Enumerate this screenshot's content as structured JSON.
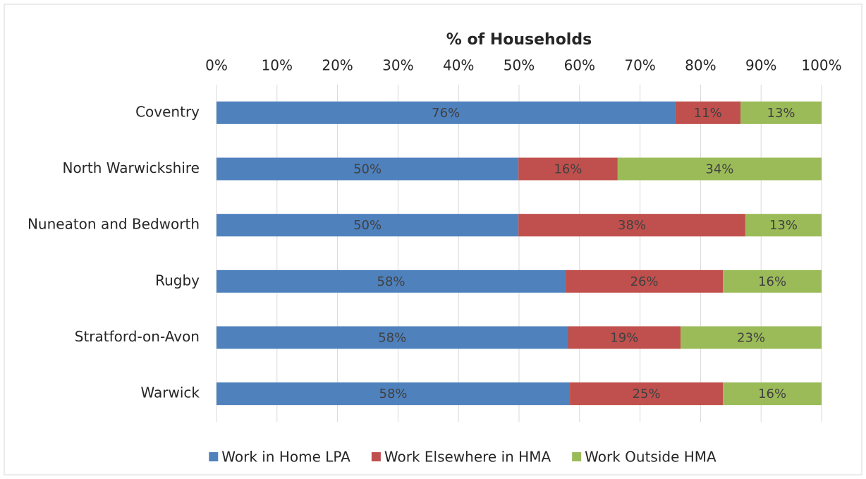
{
  "chart_data": {
    "type": "bar",
    "orientation": "horizontal",
    "stacked": true,
    "title": "% of Households",
    "categories": [
      "Coventry",
      "North Warwickshire",
      "Nuneaton and Bedworth",
      "Rugby",
      "Stratford-on-Avon",
      "Warwick"
    ],
    "series": [
      {
        "name": "Work in Home LPA",
        "color": "#4f81bd",
        "values": [
          75.8,
          49.9,
          49.9,
          57.7,
          58.1,
          58.4
        ],
        "value_labels": [
          "76%",
          "50%",
          "50%",
          "58%",
          "58%",
          "58%"
        ]
      },
      {
        "name": "Work Elsewhere in HMA",
        "color": "#c0504d",
        "values": [
          10.8,
          16.4,
          37.5,
          26.0,
          18.6,
          25.3
        ],
        "value_labels": [
          "11%",
          "16%",
          "38%",
          "26%",
          "19%",
          "25%"
        ]
      },
      {
        "name": "Work Outside HMA",
        "color": "#9bbb59",
        "values": [
          13.4,
          33.7,
          12.6,
          16.3,
          23.3,
          16.3
        ],
        "value_labels": [
          "13%",
          "34%",
          "13%",
          "16%",
          "23%",
          "16%"
        ]
      }
    ],
    "xlim": [
      0,
      100
    ],
    "xticks": [
      {
        "value": 0,
        "label": "0%"
      },
      {
        "value": 10,
        "label": "10%"
      },
      {
        "value": 20,
        "label": "20%"
      },
      {
        "value": 30,
        "label": "30%"
      },
      {
        "value": 40,
        "label": "40%"
      },
      {
        "value": 50,
        "label": "50%"
      },
      {
        "value": 60,
        "label": "60%"
      },
      {
        "value": 70,
        "label": "70%"
      },
      {
        "value": 80,
        "label": "80%"
      },
      {
        "value": 90,
        "label": "90%"
      },
      {
        "value": 100,
        "label": "100%"
      }
    ],
    "grid": true,
    "legend": "bottom"
  }
}
